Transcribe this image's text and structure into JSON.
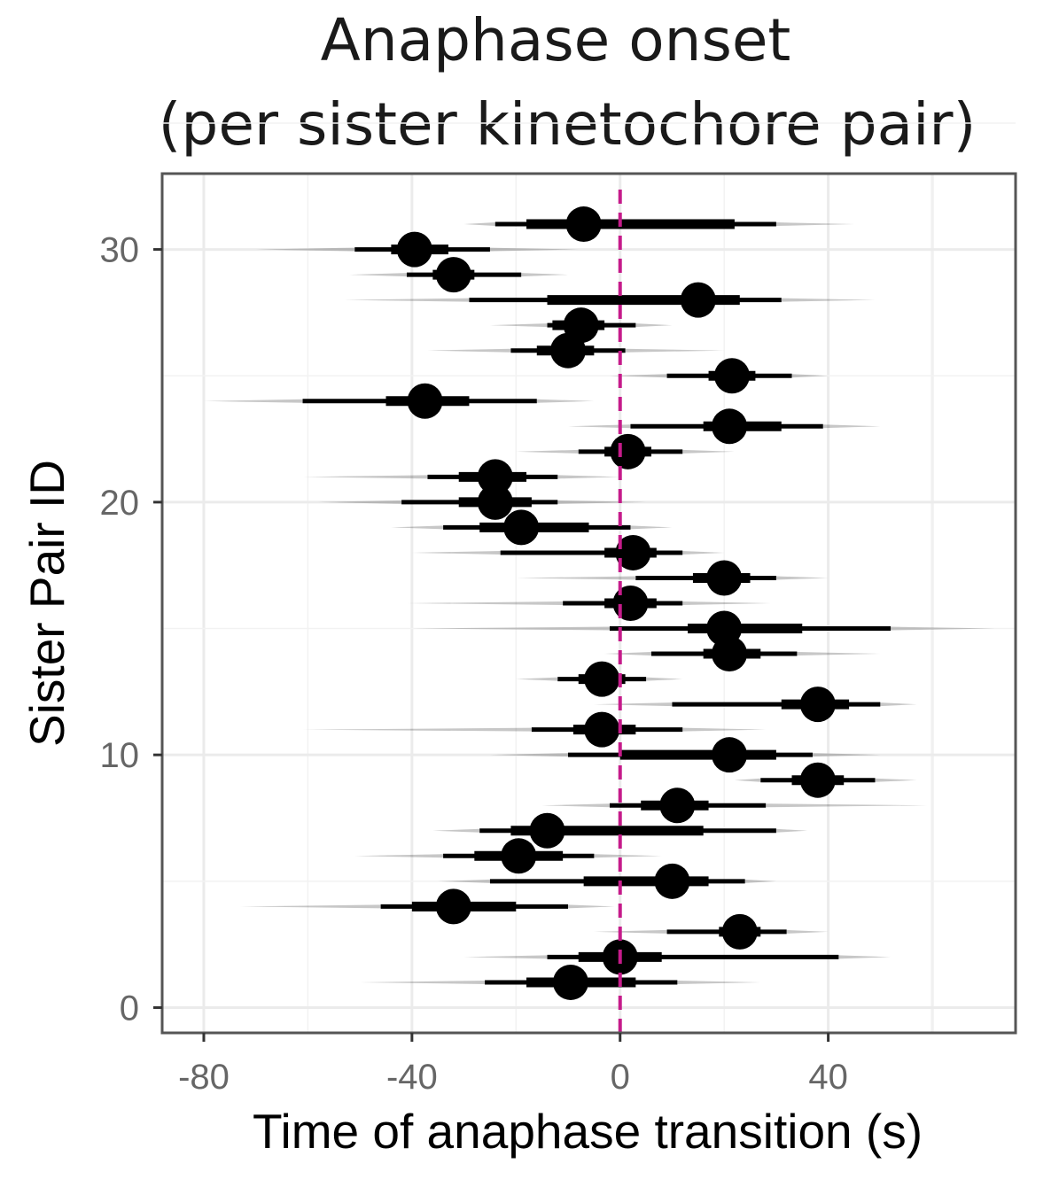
{
  "chart_data": {
    "type": "interval",
    "title": [
      "Anaphase onset",
      "(per sister kinetochore pair)"
    ],
    "xlabel": "Time of anaphase transition (s)",
    "ylabel": "Sister Pair ID",
    "xlim": [
      -88,
      76
    ],
    "ylim": [
      -1,
      33
    ],
    "xticks": [
      -80,
      -40,
      0,
      40
    ],
    "yticks": [
      0,
      10,
      20,
      30
    ],
    "grid": true,
    "reference_line": {
      "x": 0,
      "color": "#c51b8a",
      "style": "dashed"
    },
    "series": [
      {
        "id": 1,
        "median": -9.5,
        "inner": [
          -18,
          3
        ],
        "outer": [
          -26,
          11
        ],
        "tail": [
          -50,
          27
        ]
      },
      {
        "id": 2,
        "median": 0,
        "inner": [
          -8,
          8
        ],
        "outer": [
          -14,
          42
        ],
        "tail": [
          -30,
          52
        ]
      },
      {
        "id": 3,
        "median": 23,
        "inner": [
          19,
          27
        ],
        "outer": [
          9,
          32
        ],
        "tail": [
          -5,
          40
        ]
      },
      {
        "id": 4,
        "median": -32,
        "inner": [
          -40,
          -20
        ],
        "outer": [
          -46,
          -10
        ],
        "tail": [
          -73,
          -1
        ]
      },
      {
        "id": 5,
        "median": 10,
        "inner": [
          -7,
          17
        ],
        "outer": [
          -25,
          24
        ],
        "tail": [
          -35,
          30
        ]
      },
      {
        "id": 6,
        "median": -19.5,
        "inner": [
          -28,
          -11
        ],
        "outer": [
          -34,
          -5
        ],
        "tail": [
          -51,
          8
        ]
      },
      {
        "id": 7,
        "median": -14,
        "inner": [
          -21,
          16
        ],
        "outer": [
          -27,
          30
        ],
        "tail": [
          -36,
          36
        ]
      },
      {
        "id": 8,
        "median": 11,
        "inner": [
          4,
          17
        ],
        "outer": [
          -2,
          28
        ],
        "tail": [
          -15,
          59
        ]
      },
      {
        "id": 9,
        "median": 38,
        "inner": [
          33,
          43
        ],
        "outer": [
          27,
          49
        ],
        "tail": [
          22,
          57
        ]
      },
      {
        "id": 10,
        "median": 21,
        "inner": [
          0,
          30
        ],
        "outer": [
          -10,
          37
        ],
        "tail": [
          -25,
          50
        ]
      },
      {
        "id": 11,
        "median": -3.5,
        "inner": [
          -9,
          3
        ],
        "outer": [
          -17,
          12
        ],
        "tail": [
          -61,
          28
        ]
      },
      {
        "id": 12,
        "median": 38,
        "inner": [
          31,
          44
        ],
        "outer": [
          10,
          50
        ],
        "tail": [
          -5,
          57
        ]
      },
      {
        "id": 13,
        "median": -3.5,
        "inner": [
          -8,
          1
        ],
        "outer": [
          -12,
          5
        ],
        "tail": [
          -20,
          12
        ]
      },
      {
        "id": 14,
        "median": 21,
        "inner": [
          16,
          27
        ],
        "outer": [
          6,
          34
        ],
        "tail": [
          -3,
          50
        ]
      },
      {
        "id": 15,
        "median": 20,
        "inner": [
          13,
          35
        ],
        "outer": [
          -2,
          52
        ],
        "tail": [
          -40,
          72
        ]
      },
      {
        "id": 16,
        "median": 2,
        "inner": [
          -3,
          7
        ],
        "outer": [
          -11,
          12
        ],
        "tail": [
          -41,
          29
        ]
      },
      {
        "id": 17,
        "median": 20,
        "inner": [
          14,
          25
        ],
        "outer": [
          3,
          30
        ],
        "tail": [
          -20,
          40
        ]
      },
      {
        "id": 18,
        "median": 2.5,
        "inner": [
          -3,
          7
        ],
        "outer": [
          -23,
          12
        ],
        "tail": [
          -40,
          20
        ]
      },
      {
        "id": 19,
        "median": -19,
        "inner": [
          -27,
          -6
        ],
        "outer": [
          -34,
          2
        ],
        "tail": [
          -44,
          10
        ]
      },
      {
        "id": 20,
        "median": -24,
        "inner": [
          -31,
          -17
        ],
        "outer": [
          -42,
          -12
        ],
        "tail": [
          -58,
          5
        ]
      },
      {
        "id": 21,
        "median": -24,
        "inner": [
          -31,
          -18
        ],
        "outer": [
          -37,
          -12
        ],
        "tail": [
          -61,
          0
        ]
      },
      {
        "id": 22,
        "median": 1.5,
        "inner": [
          -3,
          6
        ],
        "outer": [
          -8,
          12
        ],
        "tail": [
          -20,
          22
        ]
      },
      {
        "id": 23,
        "median": 21,
        "inner": [
          16,
          31
        ],
        "outer": [
          2,
          39
        ],
        "tail": [
          -10,
          50
        ]
      },
      {
        "id": 24,
        "median": -37.5,
        "inner": [
          -45,
          -29
        ],
        "outer": [
          -61,
          -16
        ],
        "tail": [
          -80,
          -5
        ]
      },
      {
        "id": 25,
        "median": 21.5,
        "inner": [
          17,
          26
        ],
        "outer": [
          9,
          33
        ],
        "tail": [
          -2,
          40
        ]
      },
      {
        "id": 26,
        "median": -10,
        "inner": [
          -16,
          -5
        ],
        "outer": [
          -21,
          1
        ],
        "tail": [
          -37,
          20
        ]
      },
      {
        "id": 27,
        "median": -7.5,
        "inner": [
          -13,
          -3
        ],
        "outer": [
          -14,
          3
        ],
        "tail": [
          -25,
          10
        ]
      },
      {
        "id": 28,
        "median": 15,
        "inner": [
          -14,
          23
        ],
        "outer": [
          -29,
          31
        ],
        "tail": [
          -53,
          49
        ]
      },
      {
        "id": 29,
        "median": -32,
        "inner": [
          -36,
          -28
        ],
        "outer": [
          -41,
          -19
        ],
        "tail": [
          -52,
          -10
        ]
      },
      {
        "id": 30,
        "median": -39.5,
        "inner": [
          -44,
          -33
        ],
        "outer": [
          -51,
          -25
        ],
        "tail": [
          -70,
          -8
        ]
      },
      {
        "id": 31,
        "median": -7,
        "inner": [
          -18,
          22
        ],
        "outer": [
          -24,
          30
        ],
        "tail": [
          -30,
          45
        ]
      }
    ]
  }
}
